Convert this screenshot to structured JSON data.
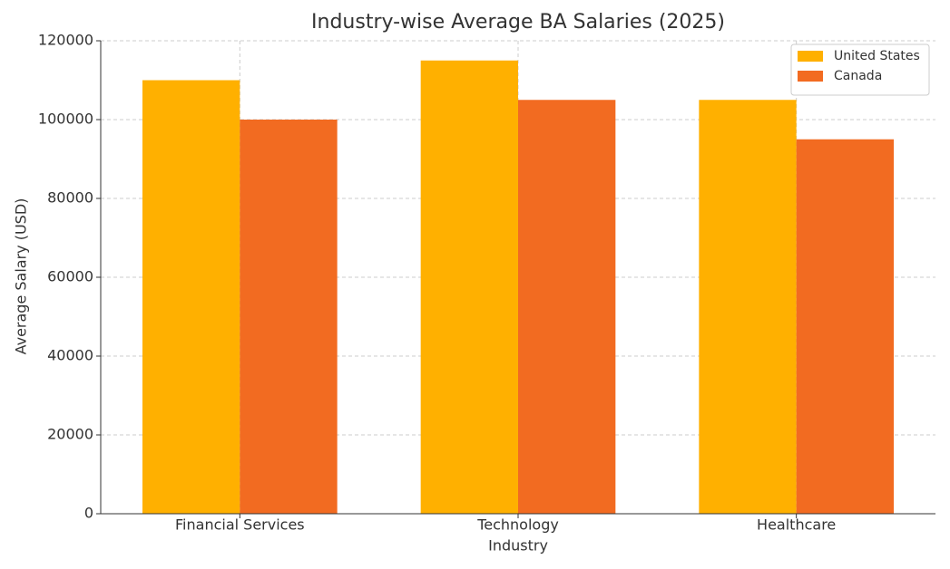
{
  "chart_data": {
    "type": "bar",
    "title": "Industry-wise Average BA Salaries (2025)",
    "x_label": "Industry",
    "y_label": "Average Salary (USD)",
    "categories": [
      "Financial Services",
      "Technology",
      "Healthcare"
    ],
    "series": [
      {
        "name": "United States",
        "color": "#FFB000",
        "values": [
          110000,
          115000,
          105000
        ]
      },
      {
        "name": "Canada",
        "color": "#F26B21",
        "values": [
          100000,
          105000,
          95000
        ]
      }
    ],
    "ylim": [
      0,
      120000
    ],
    "yticks": [
      0,
      20000,
      40000,
      60000,
      80000,
      100000,
      120000
    ],
    "grid": true,
    "legend": "upper right"
  }
}
